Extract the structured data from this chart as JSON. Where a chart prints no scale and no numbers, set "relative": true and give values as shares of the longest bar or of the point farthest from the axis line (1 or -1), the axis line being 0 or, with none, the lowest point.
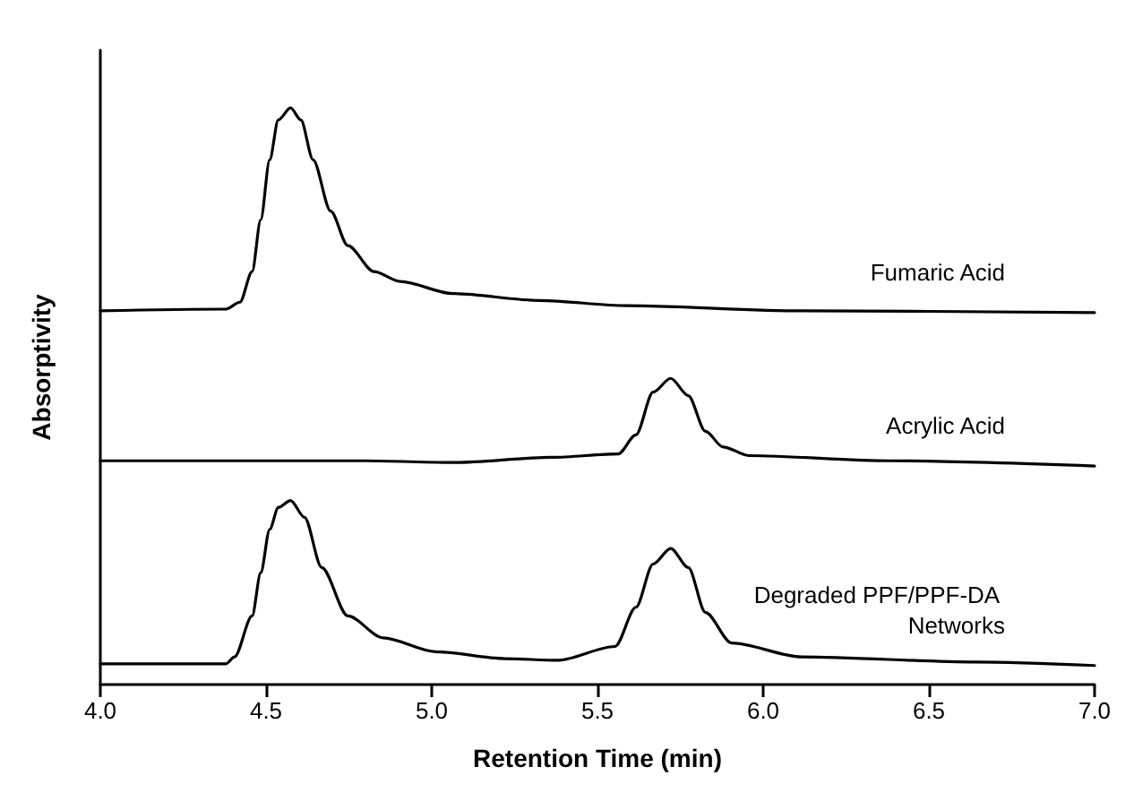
{
  "chart_data": {
    "type": "line",
    "xlabel": "Retention Time (min)",
    "ylabel": "Absorptivity",
    "relative": true,
    "marker": "none",
    "grid": false,
    "legend": false,
    "xlim": [
      4.0,
      7.0
    ],
    "xticks": [
      {
        "value": 4,
        "label": "4.0"
      },
      {
        "value": 4.5,
        "label": "4.5"
      },
      {
        "value": 5,
        "label": "5.0"
      },
      {
        "value": 5.5,
        "label": "5.5"
      },
      {
        "value": 6,
        "label": "6.0"
      },
      {
        "value": 6.5,
        "label": "6.5"
      },
      {
        "value": 7,
        "label": "7.0"
      }
    ],
    "series": [
      {
        "name": "Fumaric Acid",
        "color": "#000000",
        "x": [
          4.0,
          4.379,
          4.421,
          4.458,
          4.484,
          4.511,
          4.537,
          4.574,
          4.605,
          4.642,
          4.695,
          4.747,
          4.826,
          4.905,
          5.063,
          5.326,
          5.589,
          6.116,
          7.0
        ],
        "values": [
          0.648,
          0.651,
          0.663,
          0.716,
          0.806,
          0.91,
          0.979,
          1.0,
          0.979,
          0.91,
          0.821,
          0.761,
          0.716,
          0.699,
          0.678,
          0.666,
          0.657,
          0.648,
          0.645
        ]
      },
      {
        "name": "Acrylic Acid",
        "color": "#000000",
        "x": [
          4.0,
          4.8,
          5.063,
          5.363,
          5.563,
          5.616,
          5.668,
          5.721,
          5.774,
          5.826,
          5.879,
          5.958,
          6.379,
          7.0
        ],
        "values": [
          0.388,
          0.388,
          0.385,
          0.394,
          0.4,
          0.433,
          0.507,
          0.531,
          0.501,
          0.439,
          0.412,
          0.397,
          0.388,
          0.379
        ]
      },
      {
        "name": "Degraded PPF/PPF-DA Networks",
        "color": "#000000",
        "x": [
          4.0,
          4.379,
          4.405,
          4.458,
          4.484,
          4.511,
          4.537,
          4.574,
          4.616,
          4.668,
          4.747,
          4.853,
          5.011,
          5.221,
          5.379,
          5.553,
          5.616,
          5.668,
          5.721,
          5.774,
          5.826,
          5.905,
          6.116,
          6.642,
          7.0
        ],
        "values": [
          0.036,
          0.036,
          0.048,
          0.119,
          0.194,
          0.269,
          0.307,
          0.319,
          0.29,
          0.203,
          0.119,
          0.081,
          0.057,
          0.045,
          0.042,
          0.066,
          0.134,
          0.209,
          0.236,
          0.203,
          0.125,
          0.072,
          0.048,
          0.039,
          0.033
        ]
      }
    ]
  }
}
